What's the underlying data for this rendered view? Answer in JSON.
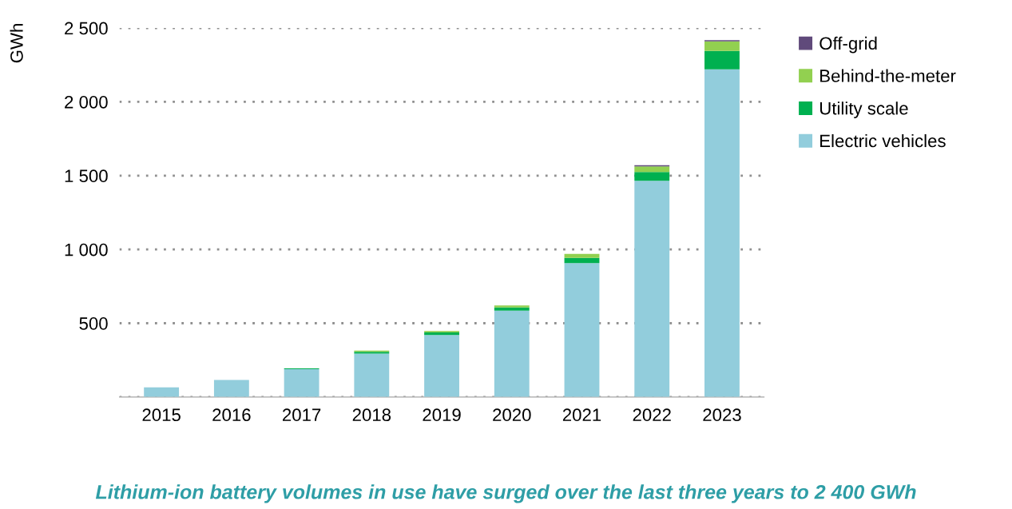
{
  "chart_data": {
    "type": "bar",
    "stacked": true,
    "title": "Lithium-ion battery volumes in use have surged over the last three years to 2 400 GWh",
    "ylabel": "GWh",
    "categories": [
      "2015",
      "2016",
      "2017",
      "2018",
      "2019",
      "2020",
      "2021",
      "2022",
      "2023"
    ],
    "series": [
      {
        "name": "Electric vehicles",
        "color": "#92cddc",
        "values": [
          65,
          115,
          189,
          294,
          420,
          585,
          908,
          1465,
          2220
        ]
      },
      {
        "name": "Utility scale",
        "color": "#00b050",
        "values": [
          0,
          0,
          5,
          12,
          18,
          22,
          35,
          60,
          125
        ]
      },
      {
        "name": "Behind-the-meter",
        "color": "#92d050",
        "values": [
          0,
          0,
          0,
          8,
          9,
          14,
          27,
          37,
          65
        ]
      },
      {
        "name": "Off-grid",
        "color": "#604a7b",
        "values": [
          0,
          0,
          0,
          0,
          0,
          0,
          0,
          8,
          8
        ]
      }
    ],
    "ylim": [
      0,
      2500
    ],
    "yticks": [
      {
        "value": 0,
        "label": null
      },
      500,
      {
        "value": 1000,
        "label": "1 000"
      },
      {
        "value": 1500,
        "label": "1 500"
      },
      {
        "value": 2000,
        "label": "2 000"
      },
      {
        "value": 2500,
        "label": "2 500"
      }
    ],
    "grid": "y",
    "legend": "top right"
  }
}
